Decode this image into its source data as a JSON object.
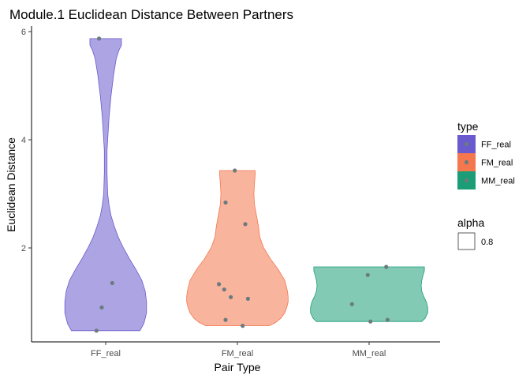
{
  "chart_data": {
    "type": "violin",
    "title": "Module.1 Euclidean Distance Between Partners",
    "xlabel": "Pair Type",
    "ylabel": "Euclidean Distance",
    "categories": [
      "FF_real",
      "FM_real",
      "MM_real"
    ],
    "y_ticks": [
      2,
      4,
      6
    ],
    "ylim": [
      0.25,
      6.1
    ],
    "grid": false,
    "legend_position": "right",
    "colors": {
      "FF_real": "#6a5acd",
      "FM_real": "#f4774e",
      "MM_real": "#1b9e77",
      "point": "#6b7b7e"
    },
    "series": [
      {
        "name": "FF_real",
        "points": [
          {
            "x": 0.95,
            "y": 5.87
          },
          {
            "x": 1.05,
            "y": 1.35
          },
          {
            "x": 0.97,
            "y": 0.9
          },
          {
            "x": 0.93,
            "y": 0.47
          }
        ]
      },
      {
        "name": "FM_real",
        "points": [
          {
            "x": 1.98,
            "y": 3.43
          },
          {
            "x": 1.91,
            "y": 2.84
          },
          {
            "x": 2.06,
            "y": 2.44
          },
          {
            "x": 1.86,
            "y": 1.33
          },
          {
            "x": 1.9,
            "y": 1.23
          },
          {
            "x": 1.95,
            "y": 1.09
          },
          {
            "x": 2.08,
            "y": 1.06
          },
          {
            "x": 1.91,
            "y": 0.67
          },
          {
            "x": 2.04,
            "y": 0.56
          }
        ]
      },
      {
        "name": "MM_real",
        "points": [
          {
            "x": 3.13,
            "y": 1.65
          },
          {
            "x": 2.99,
            "y": 1.5
          },
          {
            "x": 2.87,
            "y": 0.96
          },
          {
            "x": 3.14,
            "y": 0.67
          },
          {
            "x": 3.01,
            "y": 0.64
          }
        ]
      }
    ],
    "violins": [
      {
        "name": "FF_real",
        "profile": [
          [
            0.47,
            0.52
          ],
          [
            0.6,
            0.58
          ],
          [
            0.8,
            0.62
          ],
          [
            1.0,
            0.62
          ],
          [
            1.2,
            0.6
          ],
          [
            1.4,
            0.55
          ],
          [
            1.6,
            0.46
          ],
          [
            1.8,
            0.36
          ],
          [
            2.0,
            0.27
          ],
          [
            2.2,
            0.19
          ],
          [
            2.4,
            0.13
          ],
          [
            2.6,
            0.08
          ],
          [
            2.8,
            0.05
          ],
          [
            3.0,
            0.03
          ],
          [
            3.4,
            0.02
          ],
          [
            3.8,
            0.02
          ],
          [
            4.0,
            0.03
          ],
          [
            4.4,
            0.05
          ],
          [
            4.8,
            0.08
          ],
          [
            5.2,
            0.12
          ],
          [
            5.5,
            0.16
          ],
          [
            5.65,
            0.2
          ],
          [
            5.75,
            0.24
          ],
          [
            5.87,
            0.24
          ]
        ]
      },
      {
        "name": "FM_real",
        "profile": [
          [
            0.56,
            0.48
          ],
          [
            0.62,
            0.58
          ],
          [
            0.7,
            0.66
          ],
          [
            0.8,
            0.72
          ],
          [
            0.9,
            0.75
          ],
          [
            1.0,
            0.77
          ],
          [
            1.1,
            0.77
          ],
          [
            1.2,
            0.76
          ],
          [
            1.4,
            0.72
          ],
          [
            1.6,
            0.62
          ],
          [
            1.8,
            0.5
          ],
          [
            2.0,
            0.4
          ],
          [
            2.2,
            0.34
          ],
          [
            2.4,
            0.32
          ],
          [
            2.6,
            0.29
          ],
          [
            2.8,
            0.26
          ],
          [
            3.0,
            0.25
          ],
          [
            3.2,
            0.26
          ],
          [
            3.35,
            0.27
          ],
          [
            3.43,
            0.27
          ]
        ]
      },
      {
        "name": "MM_real",
        "profile": [
          [
            0.64,
            0.8
          ],
          [
            0.7,
            0.85
          ],
          [
            0.8,
            0.89
          ],
          [
            0.9,
            0.89
          ],
          [
            1.0,
            0.87
          ],
          [
            1.1,
            0.83
          ],
          [
            1.2,
            0.8
          ],
          [
            1.3,
            0.79
          ],
          [
            1.4,
            0.8
          ],
          [
            1.5,
            0.82
          ],
          [
            1.58,
            0.84
          ],
          [
            1.65,
            0.84
          ]
        ]
      }
    ],
    "legends": [
      {
        "title": "type",
        "entries": [
          "FF_real",
          "FM_real",
          "MM_real"
        ]
      },
      {
        "title": "alpha",
        "entries": [
          "0.8"
        ]
      }
    ]
  }
}
